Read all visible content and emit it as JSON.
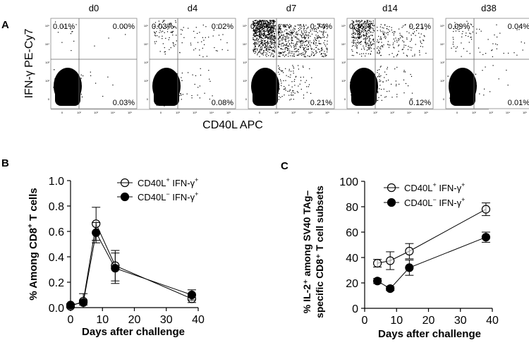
{
  "panel_a": {
    "letter": "A",
    "y_axis_label": "IFN-γ PE-Cy7",
    "x_axis_label": "CD40L APC",
    "plots": [
      {
        "title": "d0",
        "upper_left": "0.01%",
        "upper_right": "0.00%",
        "lower_right": "0.03%"
      },
      {
        "title": "d4",
        "upper_left": "0.03%",
        "upper_right": "0.02%",
        "lower_right": "0.08%"
      },
      {
        "title": "d7",
        "upper_left": "0.96%",
        "upper_right": "0.74%",
        "lower_right": "0.21%"
      },
      {
        "title": "d14",
        "upper_left": "0.36%",
        "upper_right": "0.21%",
        "lower_right": "0.12%"
      },
      {
        "title": "d38",
        "upper_left": "0.09%",
        "upper_right": "0.04%",
        "lower_right": "0.01%"
      }
    ]
  },
  "chart_data": [
    {
      "panel": "B",
      "type": "line",
      "ylabel_main": "% Among CD8",
      "ylabel_sup": "+",
      "ylabel_tail": " T cells",
      "xlabel": "Days after challenge",
      "xlim": [
        0,
        40
      ],
      "ylim": [
        0,
        1.0
      ],
      "xticks": [
        "0",
        "10",
        "20",
        "30",
        "40"
      ],
      "yticks": [
        "0.0",
        "0.2",
        "0.4",
        "0.6",
        "0.8",
        "1.0"
      ],
      "x": [
        0,
        4,
        8,
        14,
        38
      ],
      "series": [
        {
          "name": "CD40L⁺ IFN-γ⁺",
          "legend_main": "CD40L",
          "legend_sup1": "+",
          "legend_mid": " IFN-γ",
          "legend_sup2": "+",
          "marker": "open-circle",
          "values": [
            0.01,
            0.05,
            0.66,
            0.33,
            0.07
          ],
          "errors": [
            0.01,
            0.06,
            0.13,
            0.12,
            0.03
          ]
        },
        {
          "name": "CD40L⁻ IFN-γ⁺",
          "legend_main": "CD40L",
          "legend_sup1": "−",
          "legend_mid": " IFN-γ",
          "legend_sup2": "+",
          "marker": "filled-circle",
          "values": [
            0.02,
            0.04,
            0.59,
            0.31,
            0.1
          ],
          "errors": [
            0.01,
            0.02,
            0.08,
            0.12,
            0.04
          ]
        }
      ]
    },
    {
      "panel": "C",
      "type": "line",
      "ylabel_line1": "% IL-2⁺ among SV40 TAg–",
      "ylabel_line2": "specific CD8⁺ T cell subsets",
      "xlabel": "Days after challenge",
      "xlim": [
        0,
        40
      ],
      "ylim": [
        0,
        100
      ],
      "xticks": [
        "0",
        "10",
        "20",
        "30",
        "40"
      ],
      "yticks": [
        "0",
        "20",
        "40",
        "60",
        "80",
        "100"
      ],
      "x": [
        4,
        8,
        14,
        38
      ],
      "series": [
        {
          "name": "CD40L⁺ IFN-γ⁺",
          "legend_main": "CD40L",
          "legend_sup1": "+",
          "legend_mid": " IFN-γ",
          "legend_sup2": "+",
          "marker": "open-circle",
          "values": [
            35.5,
            37.5,
            45,
            78
          ],
          "errors": [
            3,
            7,
            6,
            5
          ]
        },
        {
          "name": "CD40L⁻ IFN-γ⁺",
          "legend_main": "CD40L",
          "legend_sup1": "−",
          "legend_mid": " IFN-γ",
          "legend_sup2": "+",
          "marker": "filled-circle",
          "values": [
            21.5,
            15.5,
            32,
            56
          ],
          "errors": [
            2,
            1.5,
            6,
            4
          ]
        }
      ]
    }
  ]
}
